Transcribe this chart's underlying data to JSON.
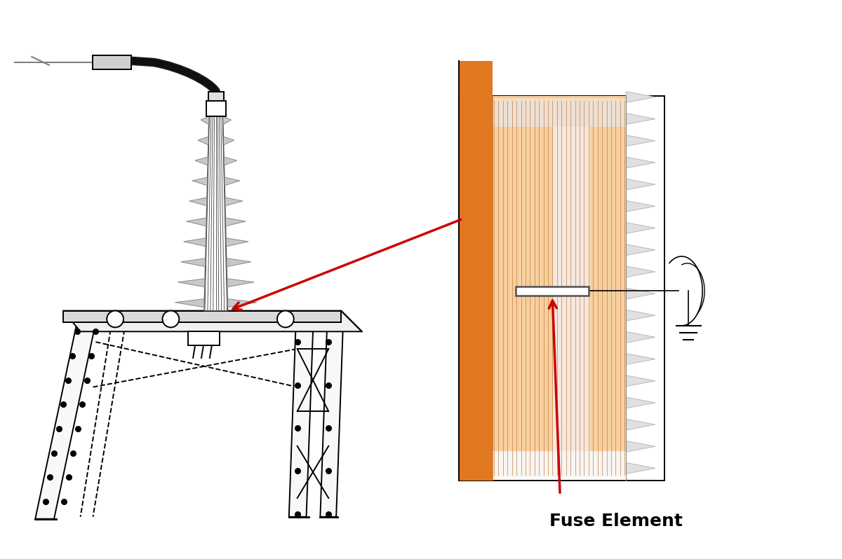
{
  "bg_color": "#ffffff",
  "fuse_element_label": "Fuse Element",
  "label_fontsize": 18,
  "label_fontweight": "bold",
  "arrow_color": "#cc0000",
  "line_color": "#000000",
  "orange_dark": "#e07820",
  "orange_light": "#f5b870",
  "orange_lighter": "#f8d0a0",
  "pink_region": "#eeddd0",
  "gray_fins": "#c8c8c8",
  "figure_size": [
    12.0,
    7.98
  ],
  "platform_color": "#f0f0f0",
  "leg_color": "#f8f8f8"
}
